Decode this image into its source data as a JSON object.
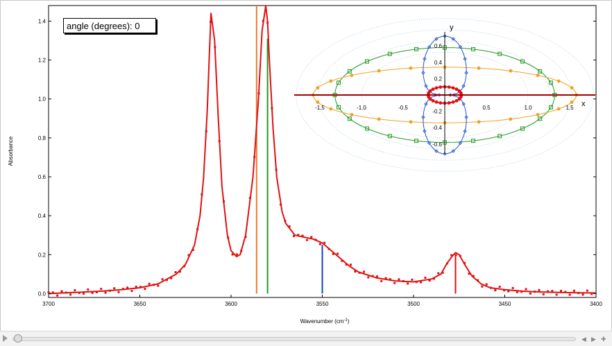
{
  "angle_label": "angle (degrees): 0",
  "chart_data": [
    {
      "type": "line",
      "xlabel": "Wavenumber (cm",
      "xlabel_sup": "-1",
      "xlabel_close": ")",
      "ylabel": "Absorbance",
      "xlim": [
        3700,
        3400
      ],
      "ylim": [
        -0.02,
        1.48
      ],
      "xticks": [
        "3700",
        "3650",
        "3600",
        "3550",
        "3500",
        "3450",
        "3400"
      ],
      "xtick_values": [
        3700,
        3650,
        3600,
        3550,
        3500,
        3450,
        3400
      ],
      "yticks": [
        "0.0",
        "0.2",
        "0.4",
        "0.6",
        "0.8",
        "1.0",
        "1.2",
        "1.4"
      ],
      "ytick_values": [
        0,
        0.2,
        0.4,
        0.6,
        0.8,
        1.0,
        1.2,
        1.4
      ],
      "fit_curve": {
        "color": "#e01010",
        "x": [
          3700,
          3690,
          3680,
          3670,
          3660,
          3650,
          3640,
          3630,
          3625,
          3620,
          3617,
          3615,
          3613,
          3612,
          3611,
          3609,
          3607,
          3605,
          3602,
          3600,
          3597,
          3595,
          3592,
          3588,
          3585,
          3583,
          3581,
          3580,
          3579,
          3577,
          3575,
          3572,
          3570,
          3565,
          3560,
          3555,
          3550,
          3545,
          3540,
          3535,
          3530,
          3520,
          3510,
          3500,
          3490,
          3485,
          3482,
          3479,
          3477,
          3475,
          3472,
          3468,
          3463,
          3458,
          3450,
          3440,
          3430,
          3420,
          3410,
          3400
        ],
        "y": [
          0.0,
          0.004,
          0.008,
          0.013,
          0.02,
          0.03,
          0.05,
          0.1,
          0.15,
          0.25,
          0.4,
          0.6,
          0.95,
          1.2,
          1.44,
          1.3,
          0.9,
          0.55,
          0.3,
          0.22,
          0.19,
          0.2,
          0.3,
          0.6,
          1.0,
          1.35,
          1.48,
          1.4,
          1.2,
          0.85,
          0.6,
          0.42,
          0.36,
          0.3,
          0.29,
          0.28,
          0.26,
          0.22,
          0.18,
          0.14,
          0.11,
          0.08,
          0.065,
          0.06,
          0.075,
          0.1,
          0.15,
          0.19,
          0.21,
          0.2,
          0.15,
          0.09,
          0.05,
          0.03,
          0.02,
          0.012,
          0.008,
          0.006,
          0.004,
          0.003
        ]
      },
      "sticks": [
        {
          "x": 3586,
          "y": 1.48,
          "color": "#f07830"
        },
        {
          "x": 3580,
          "y": 1.31,
          "color": "#229922"
        },
        {
          "x": 3550,
          "y": 0.25,
          "color": "#1040d0"
        },
        {
          "x": 3477,
          "y": 0.2,
          "color": "#e01010"
        }
      ]
    },
    {
      "type": "scatter",
      "xlabel": "x",
      "ylabel": "y",
      "xlim": [
        -1.8,
        1.8
      ],
      "ylim": [
        -0.62,
        0.65
      ],
      "xticks": [
        "-1.5",
        "-1.0",
        "-0.5",
        "0.5",
        "1.0",
        "1.5"
      ],
      "xtick_values": [
        -1.5,
        -1.0,
        -0.5,
        0.5,
        1.0,
        1.5
      ],
      "yticks": [
        "0.6",
        "0.4",
        "0.2",
        "-0.2",
        "-0.4",
        "-0.6"
      ],
      "ytick_values": [
        0.6,
        0.4,
        0.2,
        -0.2,
        -0.4,
        -0.6
      ],
      "series": [
        {
          "shape": "ellipse",
          "rx": 1.32,
          "ry": 0.58,
          "color": "#229922",
          "marker": "square"
        },
        {
          "shape": "ellipse",
          "rx": 1.58,
          "ry": 0.34,
          "color": "#f0a020",
          "marker": "circle"
        },
        {
          "shape": "peanut",
          "rx": 0.28,
          "ry": 0.6,
          "color": "#2050d0",
          "marker": "diamond"
        },
        {
          "shape": "ellipse",
          "rx": 0.2,
          "ry": 0.1,
          "color": "#e01010",
          "marker": "circle"
        }
      ]
    }
  ]
}
